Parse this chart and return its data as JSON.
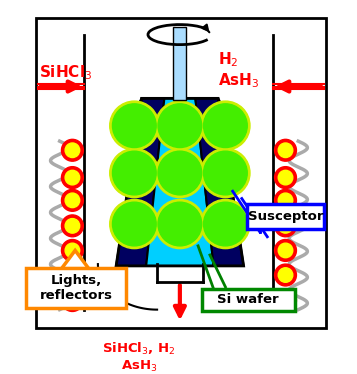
{
  "bg_color": "#ffffff",
  "chamber_color": "#000000",
  "susceptor_body_color": "#00cfff",
  "susceptor_dark_color": "#000060",
  "susceptor_top_color": "#000040",
  "wafer_color": "#44ee00",
  "wafer_border_color": "#ccee00",
  "shaft_color": "#aaddff",
  "lamp_yellow": "#ffff00",
  "lamp_red_ring": "#ff0000",
  "coil_color": "#aaaaaa",
  "arrow_red": "#ff0000",
  "arrow_green": "#008000",
  "arrow_blue": "#0000ff",
  "box_orange": "#ff8800",
  "box_blue": "#0000ff",
  "box_green": "#008800",
  "text_SiHCl3_left": "SiHCl$_3$",
  "text_H2_AsH3_right": "H$_2$\nAsH$_3$",
  "text_bottom": "SiHCl$_3$, H$_2$\nAsH$_3$",
  "text_lights": "Lights,\nreflectors",
  "text_susceptor": "Susceptor",
  "text_si_wafer": "Si wafer",
  "figw": 3.57,
  "figh": 3.74,
  "dpi": 100
}
